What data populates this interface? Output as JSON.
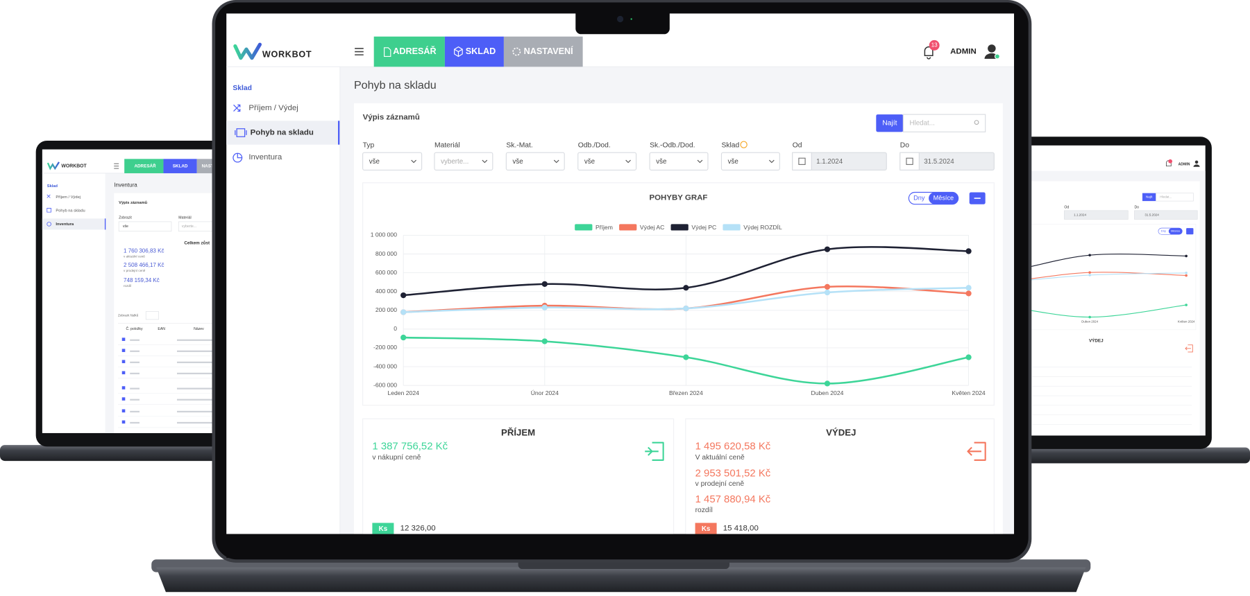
{
  "main_screen": {
    "logo": "WORKBOT",
    "nav": [
      "ADRESÁŘ",
      "SKLAD",
      "NASTAVENÍ"
    ],
    "notification_count": 13,
    "user": "ADMIN",
    "sidebar": {
      "section": "Sklad",
      "items": [
        "Příjem / Výdej",
        "Pohyb na skladu",
        "Inventura"
      ]
    },
    "page_title": "Pohyb na skladu",
    "panel_title": "Výpis záznamů",
    "search_button": "Najít",
    "search_placeholder": "Hledat...",
    "filters": [
      {
        "label": "Typ",
        "value": "vše"
      },
      {
        "label": "Materiál",
        "value": "vyberte..."
      },
      {
        "label": "Sk.-Mat.",
        "value": "vše"
      },
      {
        "label": "Odb./Dod.",
        "value": "vše"
      },
      {
        "label": "Sk.-Odb./Dod.",
        "value": "vše"
      },
      {
        "label": "Sklad",
        "value": "vše"
      },
      {
        "label": "Od",
        "value": "1.1.2024"
      },
      {
        "label": "Do",
        "value": "31.5.2024"
      }
    ],
    "chart_toggle": [
      "Dny",
      "Měsíce"
    ],
    "income": {
      "title": "PŘÍJEM",
      "amount": "1 387 756,52 Kč",
      "amount_caption": "v nákupní ceně",
      "unit": "Ks",
      "quantity": "12 326,00"
    },
    "expense": {
      "title": "VÝDEJ",
      "amounts": [
        {
          "amount": "1 495 620,58 Kč",
          "caption": "V aktuální ceně"
        },
        {
          "amount": "2 953 501,52 Kč",
          "caption": "v prodejní ceně"
        },
        {
          "amount": "1 457 880,94 Kč",
          "caption": "rozdíl"
        }
      ],
      "unit": "Ks",
      "quantity": "15 418,00"
    }
  },
  "left_screen": {
    "logo": "WORKBOT",
    "nav": [
      "ADRESÁŘ",
      "SKLAD",
      "NASTAVENÍ"
    ],
    "sidebar": {
      "section": "Sklad",
      "items": [
        "Příjem / Výdej",
        "Pohyb na skladu",
        "Inventura"
      ]
    },
    "page_title": "Inventura",
    "panel_title": "Výpis záznamů",
    "filters": [
      {
        "label": "Zobrazit",
        "value": "vše"
      },
      {
        "label": "Materiál",
        "value": "vyberte..."
      }
    ],
    "totals_title": "Celkem zůst",
    "totals": [
      {
        "amount": "1 760 306,83 Kč",
        "caption": "v aktuální ceně"
      },
      {
        "amount": "2 508 466,17 Kč",
        "caption": "v prodejní ceně"
      },
      {
        "amount": "748 159,34 Kč",
        "caption": "rozdíl"
      }
    ],
    "rows_label": "Zobrazit řádků",
    "table_headers": [
      "Č. položky",
      "EAN",
      "Název"
    ]
  },
  "right_screen": {
    "user": "ADMIN",
    "search_button": "Najít",
    "search_placeholder": "Hledat...",
    "filters": [
      {
        "label": "Od",
        "value": "1.1.2024"
      },
      {
        "label": "Do",
        "value": "31.5.2024"
      }
    ],
    "chart_toggle": [
      "Dny",
      "Měsíce"
    ],
    "summary_title": "VÝDEJ"
  },
  "chart_data": {
    "type": "line",
    "title": "POHYBY GRAF",
    "categories": [
      "Leden 2024",
      "Únor 2024",
      "Březen 2024",
      "Duben 2024",
      "Květen 2024"
    ],
    "series": [
      {
        "name": "Příjem",
        "color": "#3dd598",
        "values": [
          -90000,
          -130000,
          -300000,
          -580000,
          -300000
        ]
      },
      {
        "name": "Výdej AC",
        "color": "#f4775e",
        "values": [
          180000,
          250000,
          220000,
          450000,
          380000
        ]
      },
      {
        "name": "Výdej PC",
        "color": "#1e2133",
        "values": [
          360000,
          480000,
          440000,
          850000,
          830000
        ]
      },
      {
        "name": "Výdej ROZDÍL",
        "color": "#b5e1f7",
        "values": [
          180000,
          230000,
          220000,
          390000,
          440000
        ]
      }
    ],
    "ylim": [
      -600000,
      1000000
    ],
    "yticks": [
      {
        "value": -600000,
        "label": "-600 000"
      },
      {
        "value": -400000,
        "label": "-400 000"
      },
      {
        "value": -200000,
        "label": "-200 000"
      },
      0,
      {
        "value": 200000,
        "label": "200 000"
      },
      {
        "value": 400000,
        "label": "400 000"
      },
      {
        "value": 600000,
        "label": "600 000"
      },
      {
        "value": 800000,
        "label": "800 000"
      },
      {
        "value": 1000000,
        "label": "1 000 000"
      }
    ],
    "grid": true,
    "legend": "top"
  }
}
